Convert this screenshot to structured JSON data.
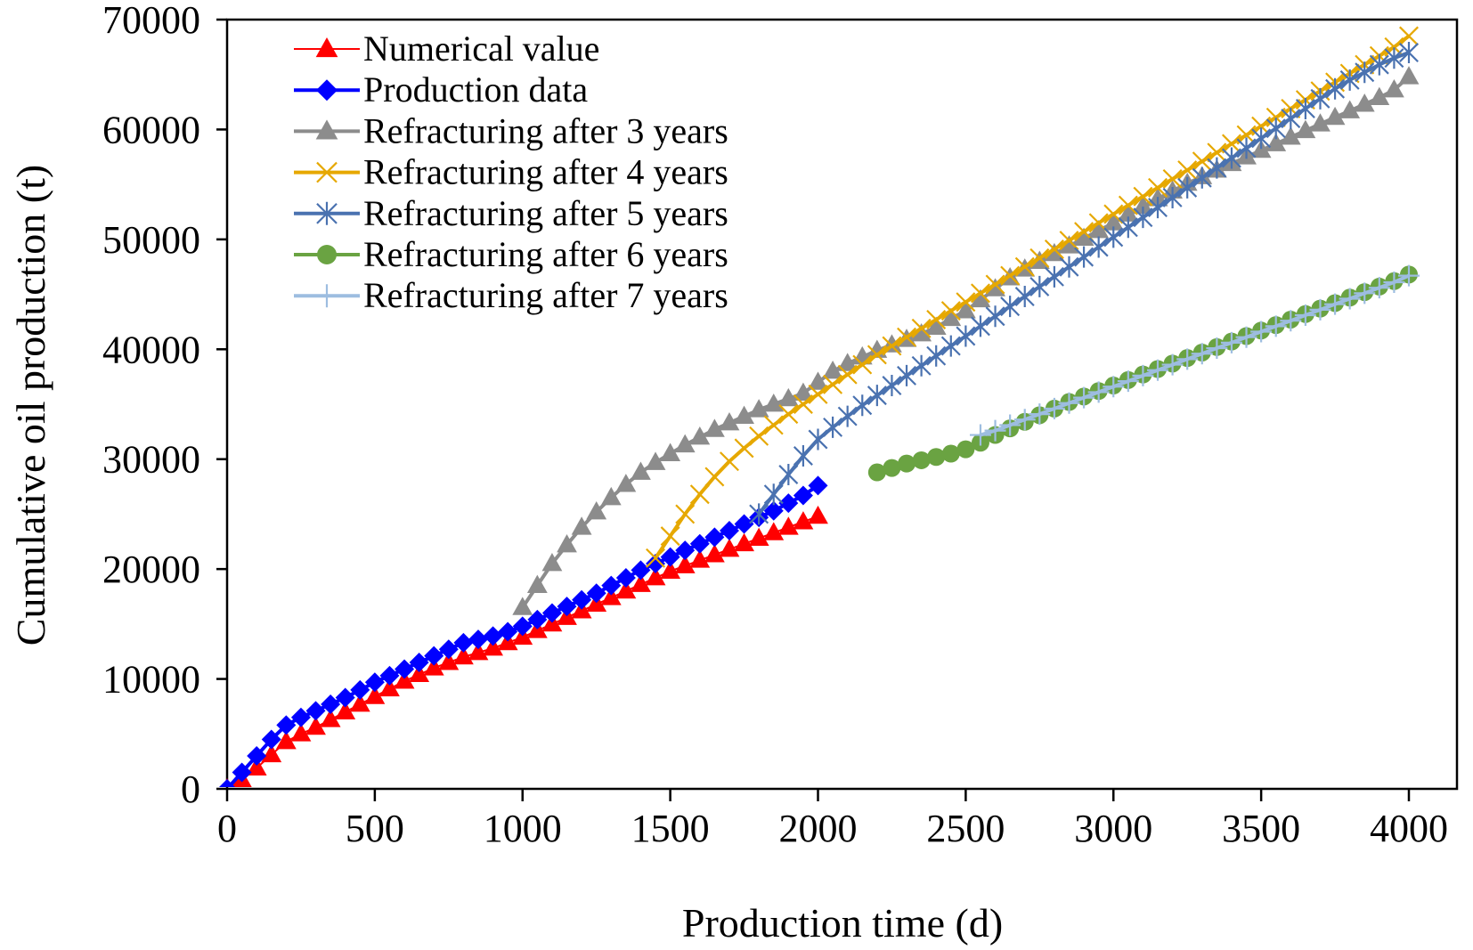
{
  "chart_data": {
    "type": "line",
    "title": "",
    "xlabel": "Production time (d)",
    "ylabel": "Cumulative oil production (t)",
    "xlim": [
      0,
      4000
    ],
    "ylim": [
      0,
      70000
    ],
    "xticks": [
      "0",
      "500",
      "1000",
      "1500",
      "2000",
      "2500",
      "3000",
      "3500",
      "4000"
    ],
    "yticks": [
      "0",
      "10000",
      "20000",
      "30000",
      "40000",
      "50000",
      "60000",
      "70000"
    ],
    "grid": false,
    "legend_position": "top-left",
    "series": [
      {
        "name": "Numerical value",
        "color": "#FF0000",
        "marker": "triangle",
        "x": [
          0,
          50,
          100,
          150,
          200,
          250,
          300,
          350,
          400,
          450,
          500,
          550,
          600,
          650,
          700,
          750,
          800,
          850,
          900,
          950,
          1000,
          1050,
          1100,
          1150,
          1200,
          1250,
          1300,
          1350,
          1400,
          1450,
          1500,
          1550,
          1600,
          1650,
          1700,
          1750,
          1800,
          1850,
          1900,
          1950,
          2000
        ],
        "y": [
          0,
          800,
          1900,
          3100,
          4300,
          5000,
          5600,
          6300,
          7000,
          7700,
          8400,
          9100,
          9800,
          10400,
          11000,
          11500,
          12000,
          12400,
          12800,
          13300,
          13800,
          14400,
          15000,
          15600,
          16200,
          16800,
          17400,
          18000,
          18600,
          19200,
          19800,
          20300,
          20800,
          21300,
          21800,
          22300,
          22800,
          23300,
          23800,
          24300,
          24800
        ]
      },
      {
        "name": "Production data",
        "color": "#0000FF",
        "marker": "diamond",
        "x": [
          0,
          50,
          100,
          150,
          200,
          250,
          300,
          350,
          400,
          450,
          500,
          550,
          600,
          650,
          700,
          750,
          800,
          850,
          900,
          950,
          1000,
          1050,
          1100,
          1150,
          1200,
          1250,
          1300,
          1350,
          1400,
          1450,
          1500,
          1550,
          1600,
          1650,
          1700,
          1750,
          1800,
          1850,
          1900,
          1950,
          2000
        ],
        "y": [
          0,
          1500,
          3000,
          4500,
          5800,
          6500,
          7100,
          7700,
          8300,
          9000,
          9700,
          10300,
          10900,
          11500,
          12100,
          12700,
          13300,
          13600,
          13900,
          14300,
          14800,
          15400,
          16000,
          16600,
          17200,
          17800,
          18500,
          19200,
          19900,
          20500,
          21100,
          21700,
          22300,
          22900,
          23500,
          24100,
          24700,
          25300,
          26000,
          26700,
          27600
        ]
      },
      {
        "name": "Refracturing after 3 years",
        "color": "#8C8C8C",
        "marker": "triangle",
        "x": [
          1000,
          1050,
          1100,
          1150,
          1200,
          1250,
          1300,
          1350,
          1400,
          1450,
          1500,
          1550,
          1600,
          1650,
          1700,
          1750,
          1800,
          1850,
          1900,
          1950,
          2000,
          2050,
          2100,
          2150,
          2200,
          2250,
          2300,
          2350,
          2400,
          2450,
          2500,
          2550,
          2600,
          2650,
          2700,
          2750,
          2800,
          2850,
          2900,
          2950,
          3000,
          3050,
          3100,
          3150,
          3200,
          3250,
          3300,
          3350,
          3400,
          3450,
          3500,
          3550,
          3600,
          3650,
          3700,
          3750,
          3800,
          3850,
          3900,
          3950,
          4000
        ],
        "y": [
          16500,
          18500,
          20500,
          22200,
          23800,
          25200,
          26500,
          27700,
          28800,
          29700,
          30500,
          31300,
          32000,
          32700,
          33300,
          33900,
          34500,
          35000,
          35500,
          36000,
          37000,
          38000,
          38700,
          39300,
          39900,
          40400,
          40900,
          41400,
          42000,
          42800,
          43500,
          44500,
          45500,
          46500,
          47300,
          48000,
          48700,
          49400,
          50100,
          50800,
          51500,
          52300,
          53000,
          53700,
          54400,
          55100,
          55700,
          56300,
          56900,
          57500,
          58100,
          58700,
          59300,
          59900,
          60500,
          61100,
          61700,
          62300,
          62900,
          63600,
          64800
        ]
      },
      {
        "name": "Refracturing after 4 years",
        "color": "#E6A800",
        "marker": "x",
        "x": [
          1450,
          1500,
          1550,
          1600,
          1650,
          1700,
          1750,
          1800,
          1850,
          1900,
          1950,
          2000,
          2050,
          2100,
          2150,
          2200,
          2250,
          2300,
          2350,
          2400,
          2450,
          2500,
          2550,
          2600,
          2650,
          2700,
          2750,
          2800,
          2850,
          2900,
          2950,
          3000,
          3050,
          3100,
          3150,
          3200,
          3250,
          3300,
          3350,
          3400,
          3450,
          3500,
          3550,
          3600,
          3650,
          3700,
          3750,
          3800,
          3850,
          3900,
          3950,
          4000
        ],
        "y": [
          21000,
          23000,
          25000,
          26800,
          28400,
          29800,
          31000,
          32100,
          33100,
          34100,
          35000,
          35900,
          36800,
          37700,
          38600,
          39500,
          40300,
          41100,
          41900,
          42700,
          43500,
          44300,
          45100,
          45900,
          46700,
          47500,
          48300,
          49100,
          49900,
          50700,
          51500,
          52300,
          53100,
          53900,
          54700,
          55500,
          56300,
          57100,
          57900,
          58700,
          59500,
          60300,
          61100,
          61900,
          62700,
          63500,
          64300,
          65100,
          65900,
          66700,
          67500,
          68500
        ]
      },
      {
        "name": "Refracturing after 5 years",
        "color": "#4A72B0",
        "marker": "star",
        "x": [
          1800,
          1850,
          1900,
          1950,
          2000,
          2050,
          2100,
          2150,
          2200,
          2250,
          2300,
          2350,
          2400,
          2450,
          2500,
          2550,
          2600,
          2650,
          2700,
          2750,
          2800,
          2850,
          2900,
          2950,
          3000,
          3050,
          3100,
          3150,
          3200,
          3250,
          3300,
          3350,
          3400,
          3450,
          3500,
          3550,
          3600,
          3650,
          3700,
          3750,
          3800,
          3850,
          3900,
          3950,
          4000
        ],
        "y": [
          25000,
          26800,
          28600,
          30300,
          31800,
          32900,
          33900,
          34900,
          35800,
          36700,
          37600,
          38500,
          39400,
          40300,
          41200,
          42100,
          43000,
          43900,
          44800,
          45700,
          46600,
          47500,
          48400,
          49300,
          50200,
          51100,
          52000,
          52900,
          53800,
          54700,
          55600,
          56500,
          57400,
          58300,
          59200,
          60100,
          61000,
          61900,
          62800,
          63700,
          64500,
          65200,
          65900,
          66500,
          67000
        ]
      },
      {
        "name": "Refracturing after 6 years",
        "color": "#6AA342",
        "marker": "circle",
        "x": [
          2200,
          2250,
          2300,
          2350,
          2400,
          2450,
          2500,
          2550,
          2600,
          2650,
          2700,
          2750,
          2800,
          2850,
          2900,
          2950,
          3000,
          3050,
          3100,
          3150,
          3200,
          3250,
          3300,
          3350,
          3400,
          3450,
          3500,
          3550,
          3600,
          3650,
          3700,
          3750,
          3800,
          3850,
          3900,
          3950,
          4000
        ],
        "y": [
          28800,
          29200,
          29600,
          29900,
          30200,
          30500,
          30900,
          31500,
          32200,
          32800,
          33400,
          34000,
          34600,
          35200,
          35700,
          36200,
          36700,
          37200,
          37700,
          38200,
          38700,
          39200,
          39700,
          40200,
          40700,
          41200,
          41700,
          42200,
          42700,
          43200,
          43700,
          44200,
          44700,
          45200,
          45700,
          46200,
          46800
        ]
      },
      {
        "name": "Refracturing after 7 years",
        "color": "#9DBDE0",
        "marker": "plus",
        "x": [
          2550,
          2600,
          2650,
          2700,
          2750,
          2800,
          2850,
          2900,
          2950,
          3000,
          3050,
          3100,
          3150,
          3200,
          3250,
          3300,
          3350,
          3400,
          3450,
          3500,
          3550,
          3600,
          3650,
          3700,
          3750,
          3800,
          3850,
          3900,
          3950,
          4000
        ],
        "y": [
          32200,
          32600,
          33100,
          33600,
          34100,
          34600,
          35100,
          35600,
          36100,
          36600,
          37100,
          37600,
          38100,
          38600,
          39100,
          39600,
          40100,
          40600,
          41100,
          41600,
          42100,
          42600,
          43100,
          43600,
          44100,
          44600,
          45100,
          45600,
          46100,
          46700
        ]
      }
    ]
  }
}
